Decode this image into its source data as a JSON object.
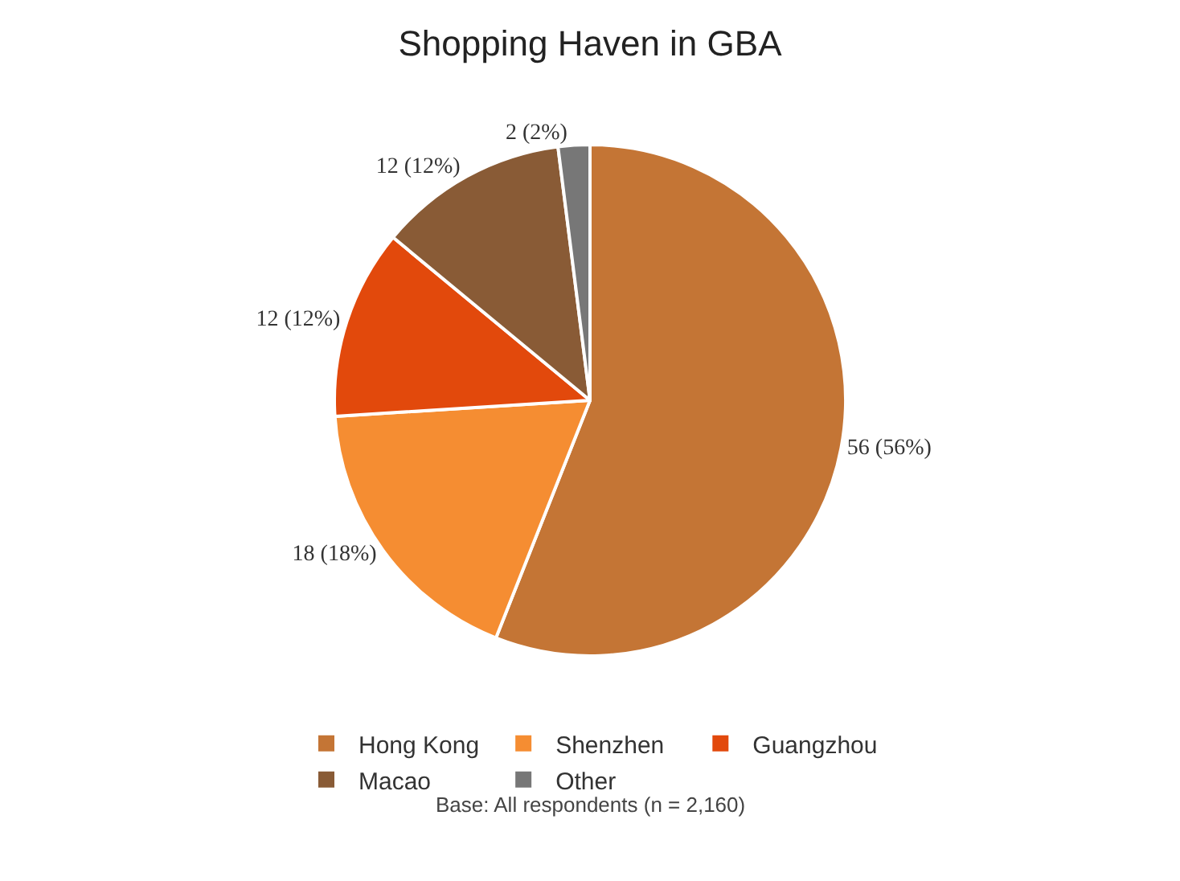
{
  "chart_data": {
    "type": "pie",
    "title": "Shopping Haven in GBA",
    "categories": [
      "Hong Kong",
      "Shenzhen",
      "Guangzhou",
      "Macao",
      "Other"
    ],
    "values": [
      56,
      18,
      12,
      12,
      2
    ],
    "colors": [
      "#c47535",
      "#f58d32",
      "#e2490c",
      "#895b36",
      "#777777"
    ],
    "value_labels": [
      "56 (56%)",
      "18 (18%)",
      "12 (12%)",
      "12 (12%)",
      "2 (2%)"
    ],
    "legend": "bottom",
    "annotations": [
      "Base: All respondents (n = 2,160)"
    ]
  }
}
